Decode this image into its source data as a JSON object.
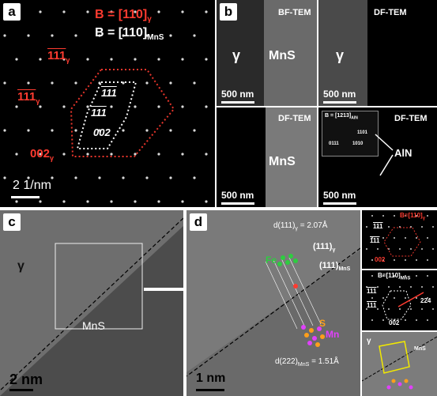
{
  "panel_a": {
    "label": "a",
    "zone_axis_gamma": "B = [110]",
    "zone_axis_gamma_sub": "γ",
    "zone_axis_mns": "B = [110]",
    "zone_axis_mns_sub": "MnS",
    "spot_1": "111",
    "spot_2": "111",
    "spot_3": "002",
    "inner_1": "111",
    "inner_2": "111",
    "inner_3": "002",
    "scale_bar": "2 1/nm",
    "colors": {
      "gamma": "#ff3b30",
      "mns": "#ffffff"
    }
  },
  "panel_b": {
    "label": "b",
    "bf_title": "BF-TEM",
    "df_title": "DF-TEM",
    "df2_title": "DF-TEM",
    "df3_title": "DF-TEM",
    "gamma": "γ",
    "mns": "MnS",
    "gamma2": "γ",
    "mns2": "MnS",
    "aln": "AlN",
    "inset_zone": "B = [1213]",
    "inset_zone_sub": "AlN",
    "inset_1": "1101",
    "inset_2": "0111",
    "inset_3": "1010",
    "scale_1": "500 nm",
    "scale_2": "500 nm",
    "scale_3": "500 nm",
    "scale_4": "500 nm"
  },
  "panel_c": {
    "label": "c",
    "gamma": "γ",
    "mns": "MnS",
    "scale": "2 nm"
  },
  "panel_d": {
    "label": "d",
    "d_gamma": "d(111)",
    "d_gamma_sub": "γ",
    "d_gamma_val": "= 2.07Å",
    "plane_gamma": "(111)",
    "plane_gamma_sub": "γ",
    "plane_mns": "(111)",
    "plane_mns_sub": "MnS",
    "fe": "Fe",
    "s": "S",
    "mn": "Mn",
    "d_mns": "d(222)",
    "d_mns_sub": "MnS",
    "d_mns_val": "= 1.51Å",
    "scale": "1 nm",
    "colors": {
      "fe": "#2ecc40",
      "s": "#ff9f1a",
      "mn": "#e040fb"
    }
  },
  "insets": {
    "top_zone": "B=[110]",
    "top_zone_sub": "γ",
    "top_1": "111",
    "top_2": "111",
    "top_3": "002",
    "mid_zone": "B=[110]",
    "mid_zone_sub": "MnS",
    "mid_1": "111",
    "mid_2": "111",
    "mid_3": "002",
    "mid_4": "224",
    "bot_gamma": "γ",
    "bot_mns": "MnS"
  }
}
